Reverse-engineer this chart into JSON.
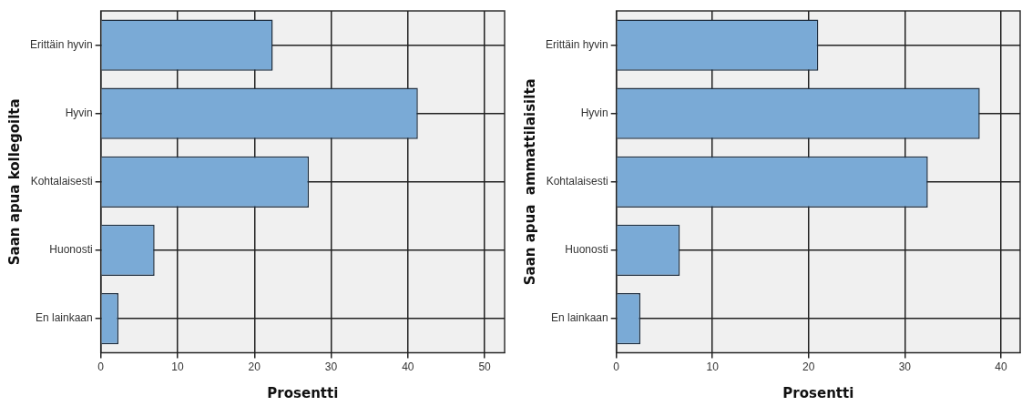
{
  "chart_data": [
    {
      "type": "bar",
      "orientation": "horizontal",
      "categories": [
        "Erittäin hyvin",
        "Hyvin",
        "Kohtalaisesti",
        "Huonosti",
        "En lainkaan"
      ],
      "values": [
        22.4,
        41.3,
        27.1,
        7.0,
        2.3
      ],
      "color": "#7aaad6",
      "xlim": [
        0,
        52.6
      ],
      "xticks": [
        0,
        10,
        20,
        30,
        40,
        50
      ],
      "xlabel": "Prosentti",
      "ylabel": "Saan apua kollegoilta",
      "grid": true,
      "legend": false
    },
    {
      "type": "bar",
      "orientation": "horizontal",
      "categories": [
        "Erittäin hyvin",
        "Hyvin",
        "Kohtalaisesti",
        "Huonosti",
        "En lainkaan"
      ],
      "values": [
        21.0,
        37.8,
        32.4,
        6.6,
        2.5
      ],
      "color": "#7aaad6",
      "xlim": [
        0,
        42
      ],
      "xticks": [
        0,
        10,
        20,
        30,
        40
      ],
      "xlabel": "Prosentti",
      "ylabel": "Saan apua  ammattilaisilta",
      "grid": true,
      "legend": false
    }
  ]
}
